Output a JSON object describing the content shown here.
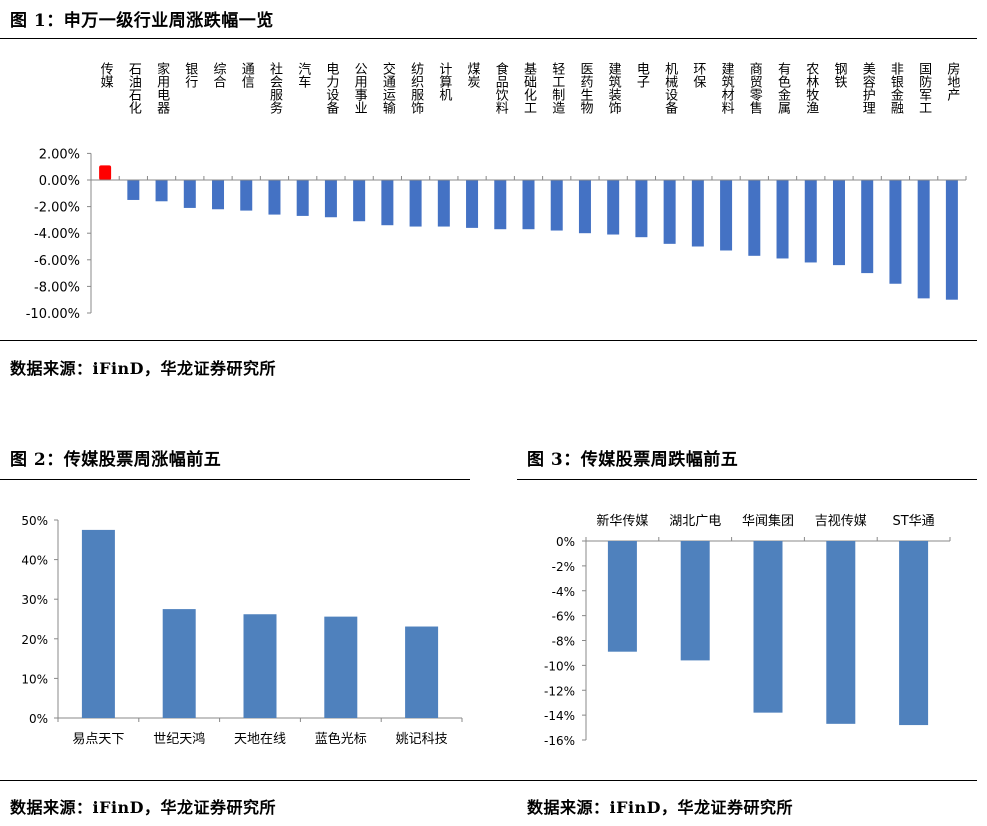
{
  "fig1": {
    "title": "图 1：申万一级行业周涨跌幅一览",
    "source": "数据来源：iFinD，华龙证券研究所"
  },
  "fig2": {
    "title": "图 2：传媒股票周涨幅前五",
    "source": "数据来源：iFinD，华龙证券研究所"
  },
  "fig3": {
    "title": "图 3：传媒股票周跌幅前五",
    "source": "数据来源：iFinD，华龙证券研究所"
  },
  "chart_data": [
    {
      "type": "bar",
      "categories": [
        "传媒",
        "石油石化",
        "家用电器",
        "银行",
        "综合",
        "通信",
        "社会服务",
        "汽车",
        "电力设备",
        "公用事业",
        "交通运输",
        "纺织服饰",
        "计算机",
        "煤炭",
        "食品饮料",
        "基础化工",
        "轻工制造",
        "医药生物",
        "建筑装饰",
        "电子",
        "机械设备",
        "环保",
        "建筑材料",
        "商贸零售",
        "有色金属",
        "农林牧渔",
        "钢铁",
        "美容护理",
        "非银金融",
        "国防军工",
        "房地产"
      ],
      "values": [
        1.1,
        -1.5,
        -1.6,
        -2.1,
        -2.2,
        -2.3,
        -2.6,
        -2.7,
        -2.8,
        -3.1,
        -3.4,
        -3.5,
        -3.5,
        -3.6,
        -3.7,
        -3.7,
        -3.8,
        -4.0,
        -4.1,
        -4.3,
        -4.8,
        -5.0,
        -5.3,
        -5.7,
        -5.9,
        -6.2,
        -6.4,
        -7.0,
        -7.8,
        -8.9,
        -9.0
      ],
      "unit": "%",
      "yticks": [
        "2.00%",
        "0.00%",
        "-2.00%",
        "-4.00%",
        "-6.00%",
        "-8.00%",
        "-10.00%"
      ],
      "ylim": [
        -10,
        2
      ],
      "colors": {
        "positive": "#ff0000",
        "negative": "#4472c4"
      },
      "grid": false
    },
    {
      "type": "bar",
      "categories": [
        "易点天下",
        "世纪天鸿",
        "天地在线",
        "蓝色光标",
        "姚记科技"
      ],
      "values": [
        47.5,
        27.5,
        26.2,
        25.6,
        23.1
      ],
      "unit": "%",
      "yticks": [
        "0%",
        "10%",
        "20%",
        "30%",
        "40%",
        "50%"
      ],
      "ylim": [
        0,
        50
      ],
      "color": "#4f81bd",
      "grid": false
    },
    {
      "type": "bar",
      "categories": [
        "新华传媒",
        "湖北广电",
        "华闻集团",
        "吉视传媒",
        "ST华通"
      ],
      "values": [
        -8.9,
        -9.6,
        -13.8,
        -14.7,
        -14.8
      ],
      "unit": "%",
      "yticks": [
        "0%",
        "-2%",
        "-4%",
        "-6%",
        "-8%",
        "-10%",
        "-12%",
        "-14%",
        "-16%"
      ],
      "ylim": [
        -16,
        0
      ],
      "color": "#4f81bd",
      "grid": false
    }
  ]
}
